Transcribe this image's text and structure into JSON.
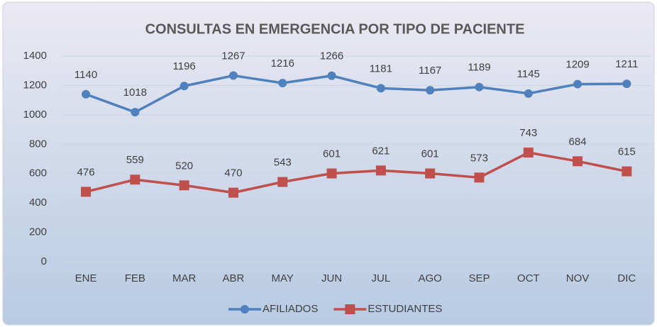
{
  "chart_data": {
    "type": "line",
    "title": "CONSULTAS EN EMERGENCIA POR TIPO DE PACIENTE",
    "categories": [
      "ENE",
      "FEB",
      "MAR",
      "ABR",
      "MAY",
      "JUN",
      "JUL",
      "AGO",
      "SEP",
      "OCT",
      "NOV",
      "DIC"
    ],
    "series": [
      {
        "name": "AFILIADOS",
        "color": "#4f81bd",
        "marker": "circle",
        "values": [
          1140,
          1018,
          1196,
          1267,
          1216,
          1266,
          1181,
          1167,
          1189,
          1145,
          1209,
          1211
        ]
      },
      {
        "name": "ESTUDIANTES",
        "color": "#c0504d",
        "marker": "square",
        "values": [
          476,
          559,
          520,
          470,
          543,
          601,
          621,
          601,
          573,
          743,
          684,
          615
        ]
      }
    ],
    "ylim": [
      0,
      1400
    ],
    "yticks": [
      0,
      200,
      400,
      600,
      800,
      1000,
      1200,
      1400
    ],
    "grid": true,
    "legend": "bottom"
  }
}
